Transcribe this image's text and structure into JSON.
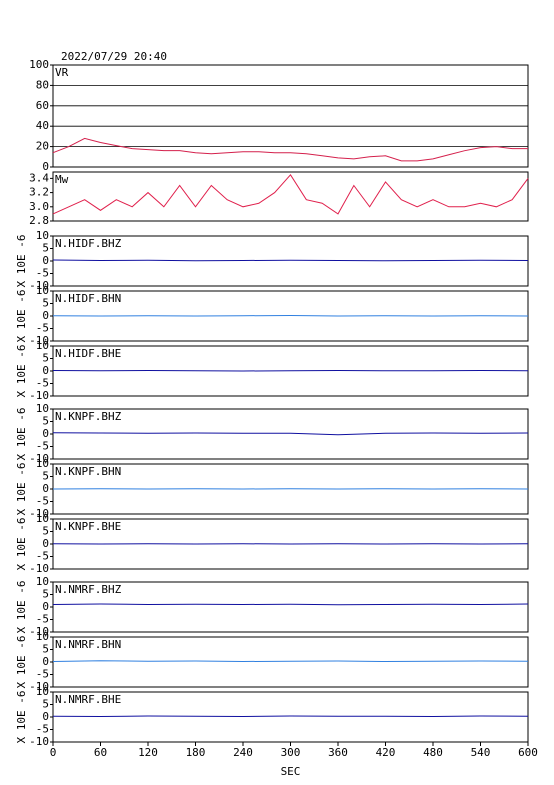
{
  "chart_data": [
    {
      "type": "line",
      "title": "2022/07/29 20:40",
      "label": "VR",
      "x": [
        0,
        20,
        40,
        60,
        80,
        100,
        120,
        140,
        160,
        180,
        200,
        220,
        240,
        260,
        280,
        300,
        320,
        340,
        360,
        380,
        400,
        420,
        440,
        460,
        480,
        500,
        520,
        540,
        560,
        580,
        600
      ],
      "series": [
        {
          "color": "#d4204c",
          "values": [
            14,
            20,
            28,
            24,
            21,
            18,
            17,
            16,
            16,
            14,
            13,
            14,
            15,
            15,
            14,
            14,
            13,
            11,
            9,
            8,
            10,
            11,
            6,
            6,
            8,
            12,
            16,
            19,
            20,
            18,
            18
          ]
        }
      ],
      "xlim": [
        0,
        600
      ],
      "ylim": [
        0,
        100
      ],
      "yticks": [
        0,
        20,
        40,
        60,
        80,
        100
      ],
      "grid": true
    },
    {
      "type": "line",
      "label": "Mw",
      "x": [
        0,
        20,
        40,
        60,
        80,
        100,
        120,
        140,
        160,
        180,
        200,
        220,
        240,
        260,
        280,
        300,
        320,
        340,
        360,
        380,
        400,
        420,
        440,
        460,
        480,
        500,
        520,
        540,
        560,
        580,
        600
      ],
      "series": [
        {
          "color": "#e0204c",
          "values": [
            2.9,
            3.0,
            3.1,
            2.95,
            3.1,
            3.0,
            3.2,
            3.0,
            3.3,
            3.0,
            3.3,
            3.1,
            3.0,
            3.05,
            3.2,
            3.45,
            3.1,
            3.05,
            2.9,
            3.3,
            3.0,
            3.35,
            3.1,
            3.0,
            3.1,
            3.0,
            3.0,
            3.05,
            3.0,
            3.1,
            3.4
          ]
        }
      ],
      "xlim": [
        0,
        600
      ],
      "ylim": [
        2.8,
        3.49
      ],
      "yticks": [
        2.8,
        {
          "value": 3,
          "label": "3.0"
        },
        3.2,
        3.4
      ]
    },
    {
      "type": "line",
      "label": "N.HIDF.BHZ",
      "ylabel": "X 10E -6",
      "x": [
        0,
        60,
        120,
        180,
        240,
        300,
        360,
        420,
        480,
        540,
        600
      ],
      "series": [
        {
          "color": "#1010a0",
          "values": [
            0.4,
            0.2,
            0.3,
            0.1,
            0.2,
            0.3,
            0.2,
            0.1,
            0.2,
            0.3,
            0.2
          ]
        }
      ],
      "xlim": [
        0,
        600
      ],
      "ylim": [
        -10,
        10
      ],
      "yticks": [
        -10,
        -5,
        0,
        5,
        10
      ]
    },
    {
      "type": "line",
      "label": "N.HIDF.BHN",
      "ylabel": "X 10E -6",
      "x": [
        0,
        60,
        120,
        180,
        240,
        300,
        360,
        420,
        480,
        540,
        600
      ],
      "series": [
        {
          "color": "#3080e0",
          "values": [
            0.1,
            0.0,
            0.1,
            0.0,
            0.1,
            0.2,
            0.0,
            0.1,
            0.0,
            0.1,
            0.0
          ]
        }
      ],
      "xlim": [
        0,
        600
      ],
      "ylim": [
        -10,
        10
      ],
      "yticks": [
        -10,
        -5,
        0,
        5,
        10
      ]
    },
    {
      "type": "line",
      "label": "N.HIDF.BHE",
      "ylabel": "X 10E -6",
      "x": [
        0,
        60,
        120,
        180,
        240,
        300,
        360,
        420,
        480,
        540,
        600
      ],
      "series": [
        {
          "color": "#1010a0",
          "values": [
            0.2,
            0.1,
            0.2,
            0.1,
            0.0,
            0.1,
            0.2,
            0.1,
            0.1,
            0.2,
            0.1
          ]
        }
      ],
      "xlim": [
        0,
        600
      ],
      "ylim": [
        -10,
        10
      ],
      "yticks": [
        -10,
        -5,
        0,
        5,
        10
      ]
    },
    {
      "type": "line",
      "label": "N.KNPF.BHZ",
      "ylabel": "X 10E -6",
      "x": [
        0,
        60,
        120,
        180,
        240,
        300,
        360,
        420,
        480,
        540,
        600
      ],
      "series": [
        {
          "color": "#1010a0",
          "values": [
            0.5,
            0.4,
            0.3,
            0.4,
            0.3,
            0.3,
            -0.3,
            0.3,
            0.4,
            0.3,
            0.4
          ]
        }
      ],
      "xlim": [
        0,
        600
      ],
      "ylim": [
        -10,
        10
      ],
      "yticks": [
        -10,
        -5,
        0,
        5,
        10
      ]
    },
    {
      "type": "line",
      "label": "N.KNPF.BHN",
      "ylabel": "X 10E -6",
      "x": [
        0,
        60,
        120,
        180,
        240,
        300,
        360,
        420,
        480,
        540,
        600
      ],
      "series": [
        {
          "color": "#3080e0",
          "values": [
            0.0,
            0.1,
            0.0,
            0.1,
            0.0,
            0.1,
            0.0,
            0.1,
            0.0,
            0.1,
            0.0
          ]
        }
      ],
      "xlim": [
        0,
        600
      ],
      "ylim": [
        -10,
        10
      ],
      "yticks": [
        -10,
        -5,
        0,
        5,
        10
      ]
    },
    {
      "type": "line",
      "label": "N.KNPF.BHE",
      "ylabel": "X 10E -6",
      "x": [
        0,
        60,
        120,
        180,
        240,
        300,
        360,
        420,
        480,
        540,
        600
      ],
      "series": [
        {
          "color": "#1010a0",
          "values": [
            0.1,
            0.0,
            0.1,
            0.0,
            0.1,
            0.0,
            0.1,
            0.0,
            0.1,
            0.0,
            0.1
          ]
        }
      ],
      "xlim": [
        0,
        600
      ],
      "ylim": [
        -10,
        10
      ],
      "yticks": [
        -10,
        -5,
        0,
        5,
        10
      ]
    },
    {
      "type": "line",
      "label": "N.NMRF.BHZ",
      "ylabel": "X 10E -6",
      "x": [
        0,
        60,
        120,
        180,
        240,
        300,
        360,
        420,
        480,
        540,
        600
      ],
      "series": [
        {
          "color": "#1010a0",
          "values": [
            1.0,
            1.2,
            1.0,
            1.1,
            1.0,
            1.1,
            0.9,
            1.0,
            1.1,
            1.0,
            1.2
          ]
        }
      ],
      "xlim": [
        0,
        600
      ],
      "ylim": [
        -10,
        10
      ],
      "yticks": [
        -10,
        -5,
        0,
        5,
        10
      ]
    },
    {
      "type": "line",
      "label": "N.NMRF.BHN",
      "ylabel": "X 10E -6",
      "x": [
        0,
        60,
        120,
        180,
        240,
        300,
        360,
        420,
        480,
        540,
        600
      ],
      "series": [
        {
          "color": "#3080e0",
          "values": [
            0.2,
            0.5,
            0.3,
            0.4,
            0.2,
            0.3,
            0.4,
            0.2,
            0.3,
            0.4,
            0.3
          ]
        }
      ],
      "xlim": [
        0,
        600
      ],
      "ylim": [
        -10,
        10
      ],
      "yticks": [
        -10,
        -5,
        0,
        5,
        10
      ]
    },
    {
      "type": "line",
      "label": "N.NMRF.BHE",
      "ylabel": "X 10E -6",
      "x": [
        0,
        60,
        120,
        180,
        240,
        300,
        360,
        420,
        480,
        540,
        600
      ],
      "series": [
        {
          "color": "#1010a0",
          "values": [
            0.3,
            0.2,
            0.4,
            0.3,
            0.2,
            0.4,
            0.3,
            0.3,
            0.2,
            0.4,
            0.3
          ]
        }
      ],
      "xlim": [
        0,
        600
      ],
      "ylim": [
        -10,
        10
      ],
      "yticks": [
        -10,
        -5,
        0,
        5,
        10
      ],
      "xticks": [
        0,
        60,
        120,
        180,
        240,
        300,
        360,
        420,
        480,
        540,
        600
      ],
      "xlabel": "SEC"
    }
  ]
}
